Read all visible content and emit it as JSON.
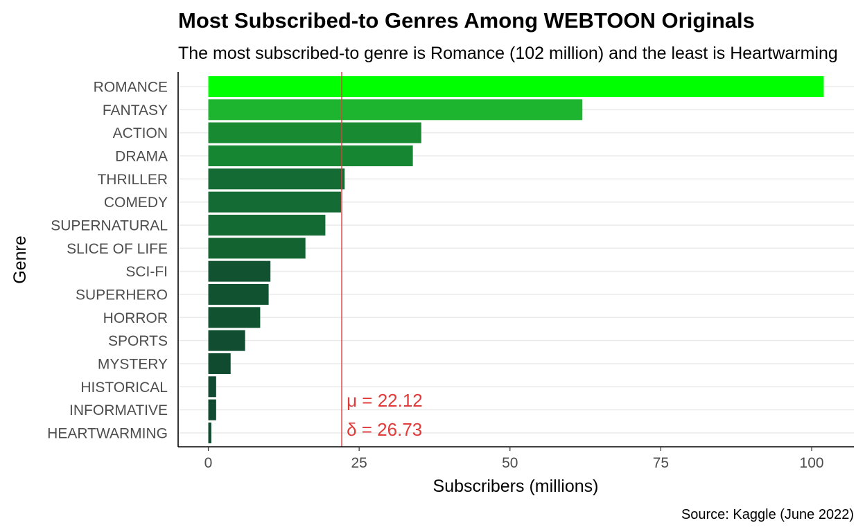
{
  "chart_data": {
    "type": "bar",
    "orientation": "horizontal",
    "title": "Most Subscribed-to Genres Among WEBTOON Originals",
    "subtitle": "The most subscribed-to genre is Romance (102 million) and the least is Heartwarming",
    "xlabel": "Subscribers (millions)",
    "ylabel": "Genre",
    "caption": "Source: Kaggle (June 2022)",
    "xlim": [
      -5,
      107
    ],
    "xticks": [
      0,
      25,
      50,
      75,
      100
    ],
    "grid": "horizontal major gridlines",
    "categories": [
      "ROMANCE",
      "FANTASY",
      "ACTION",
      "DRAMA",
      "THRILLER",
      "COMEDY",
      "SUPERNATURAL",
      "SLICE OF LIFE",
      "SCI-FI",
      "SUPERHERO",
      "HORROR",
      "SPORTS",
      "MYSTERY",
      "HISTORICAL",
      "INFORMATIVE",
      "HEARTWARMING"
    ],
    "values": [
      102,
      62,
      35.3,
      33.9,
      22.6,
      22.0,
      19.4,
      16.1,
      10.3,
      10.0,
      8.6,
      6.1,
      3.7,
      1.3,
      1.3,
      0.5
    ],
    "colors": [
      "#00ff00",
      "#1db52f",
      "#178a32",
      "#178632",
      "#146b33",
      "#146b33",
      "#136a32",
      "#12632f",
      "#115331",
      "#115331",
      "#115231",
      "#114d31",
      "#104b30",
      "#104a30",
      "#104a30",
      "#0f4a30"
    ],
    "mean_line": {
      "value": 22.12,
      "color": "#e03b3b",
      "labels": [
        "μ = 22.12",
        "δ = 26.73"
      ]
    }
  }
}
